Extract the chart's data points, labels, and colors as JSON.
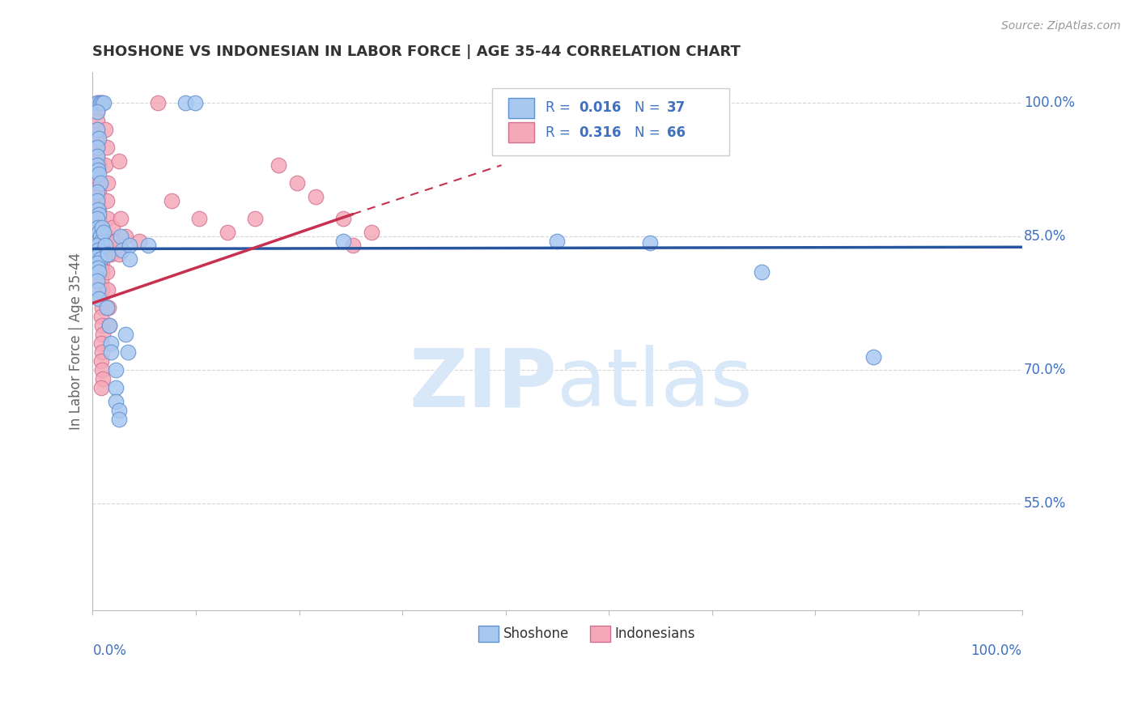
{
  "title": "SHOSHONE VS INDONESIAN IN LABOR FORCE | AGE 35-44 CORRELATION CHART",
  "source": "Source: ZipAtlas.com",
  "ylabel": "In Labor Force | Age 35-44",
  "ytick_labels": [
    "100.0%",
    "85.0%",
    "70.0%",
    "55.0%"
  ],
  "ytick_values": [
    1.0,
    0.85,
    0.7,
    0.55
  ],
  "xmin": 0.0,
  "xmax": 1.0,
  "ymin": 0.43,
  "ymax": 1.035,
  "blue_color": "#A8C8F0",
  "blue_edge": "#6090D0",
  "pink_color": "#F5A8B8",
  "pink_edge": "#D07090",
  "trendline_blue_color": "#2855A0",
  "trendline_pink_color": "#C83050",
  "grid_color": "#CCCCCC",
  "text_color": "#4070C0",
  "title_color": "#333333",
  "watermark_color": "#D8E8F8",
  "shoshone_points": [
    [
      0.005,
      1.0
    ],
    [
      0.008,
      1.0
    ],
    [
      0.01,
      1.0
    ],
    [
      0.012,
      1.0
    ],
    [
      0.005,
      0.99
    ],
    [
      0.005,
      0.97
    ],
    [
      0.007,
      0.96
    ],
    [
      0.005,
      0.95
    ],
    [
      0.005,
      0.94
    ],
    [
      0.005,
      0.93
    ],
    [
      0.006,
      0.925
    ],
    [
      0.007,
      0.92
    ],
    [
      0.008,
      0.91
    ],
    [
      0.005,
      0.9
    ],
    [
      0.005,
      0.89
    ],
    [
      0.006,
      0.88
    ],
    [
      0.007,
      0.875
    ],
    [
      0.005,
      0.87
    ],
    [
      0.006,
      0.86
    ],
    [
      0.007,
      0.855
    ],
    [
      0.008,
      0.85
    ],
    [
      0.009,
      0.845
    ],
    [
      0.005,
      0.84
    ],
    [
      0.006,
      0.835
    ],
    [
      0.007,
      0.83
    ],
    [
      0.008,
      0.825
    ],
    [
      0.005,
      0.82
    ],
    [
      0.006,
      0.815
    ],
    [
      0.007,
      0.81
    ],
    [
      0.005,
      0.8
    ],
    [
      0.006,
      0.79
    ],
    [
      0.007,
      0.78
    ],
    [
      0.01,
      0.86
    ],
    [
      0.012,
      0.855
    ],
    [
      0.014,
      0.84
    ],
    [
      0.016,
      0.83
    ],
    [
      0.015,
      0.77
    ],
    [
      0.018,
      0.75
    ],
    [
      0.02,
      0.73
    ],
    [
      0.02,
      0.72
    ],
    [
      0.025,
      0.7
    ],
    [
      0.025,
      0.68
    ],
    [
      0.025,
      0.665
    ],
    [
      0.028,
      0.655
    ],
    [
      0.028,
      0.645
    ],
    [
      0.03,
      0.85
    ],
    [
      0.032,
      0.835
    ],
    [
      0.035,
      0.74
    ],
    [
      0.038,
      0.72
    ],
    [
      0.04,
      0.84
    ],
    [
      0.04,
      0.825
    ],
    [
      0.06,
      0.84
    ],
    [
      0.1,
      1.0
    ],
    [
      0.11,
      1.0
    ],
    [
      0.27,
      0.845
    ],
    [
      0.5,
      0.845
    ],
    [
      0.6,
      0.843
    ],
    [
      0.72,
      0.81
    ],
    [
      0.84,
      0.715
    ]
  ],
  "indonesian_points": [
    [
      0.005,
      1.0
    ],
    [
      0.007,
      1.0
    ],
    [
      0.009,
      1.0
    ],
    [
      0.005,
      0.99
    ],
    [
      0.005,
      0.98
    ],
    [
      0.005,
      0.97
    ],
    [
      0.006,
      0.965
    ],
    [
      0.005,
      0.96
    ],
    [
      0.006,
      0.955
    ],
    [
      0.005,
      0.95
    ],
    [
      0.005,
      0.94
    ],
    [
      0.006,
      0.935
    ],
    [
      0.007,
      0.93
    ],
    [
      0.006,
      0.925
    ],
    [
      0.005,
      0.92
    ],
    [
      0.005,
      0.91
    ],
    [
      0.006,
      0.905
    ],
    [
      0.007,
      0.9
    ],
    [
      0.006,
      0.895
    ],
    [
      0.005,
      0.89
    ],
    [
      0.006,
      0.885
    ],
    [
      0.007,
      0.88
    ],
    [
      0.006,
      0.875
    ],
    [
      0.007,
      0.87
    ],
    [
      0.008,
      0.865
    ],
    [
      0.009,
      0.86
    ],
    [
      0.01,
      0.86
    ],
    [
      0.009,
      0.855
    ],
    [
      0.01,
      0.85
    ],
    [
      0.009,
      0.845
    ],
    [
      0.01,
      0.84
    ],
    [
      0.009,
      0.835
    ],
    [
      0.01,
      0.83
    ],
    [
      0.009,
      0.825
    ],
    [
      0.01,
      0.82
    ],
    [
      0.009,
      0.815
    ],
    [
      0.01,
      0.81
    ],
    [
      0.009,
      0.8
    ],
    [
      0.01,
      0.79
    ],
    [
      0.009,
      0.78
    ],
    [
      0.01,
      0.77
    ],
    [
      0.009,
      0.76
    ],
    [
      0.01,
      0.75
    ],
    [
      0.011,
      0.74
    ],
    [
      0.009,
      0.73
    ],
    [
      0.01,
      0.72
    ],
    [
      0.009,
      0.71
    ],
    [
      0.01,
      0.7
    ],
    [
      0.011,
      0.69
    ],
    [
      0.009,
      0.68
    ],
    [
      0.014,
      0.97
    ],
    [
      0.015,
      0.95
    ],
    [
      0.014,
      0.93
    ],
    [
      0.016,
      0.91
    ],
    [
      0.015,
      0.89
    ],
    [
      0.016,
      0.87
    ],
    [
      0.015,
      0.85
    ],
    [
      0.016,
      0.83
    ],
    [
      0.015,
      0.81
    ],
    [
      0.016,
      0.79
    ],
    [
      0.017,
      0.77
    ],
    [
      0.018,
      0.75
    ],
    [
      0.021,
      0.86
    ],
    [
      0.022,
      0.845
    ],
    [
      0.02,
      0.83
    ],
    [
      0.025,
      0.845
    ],
    [
      0.028,
      0.935
    ],
    [
      0.03,
      0.87
    ],
    [
      0.028,
      0.83
    ],
    [
      0.035,
      0.85
    ],
    [
      0.05,
      0.845
    ],
    [
      0.07,
      1.0
    ],
    [
      0.085,
      0.89
    ],
    [
      0.115,
      0.87
    ],
    [
      0.145,
      0.855
    ],
    [
      0.175,
      0.87
    ],
    [
      0.2,
      0.93
    ],
    [
      0.22,
      0.91
    ],
    [
      0.24,
      0.895
    ],
    [
      0.27,
      0.87
    ],
    [
      0.3,
      0.855
    ],
    [
      0.28,
      0.84
    ]
  ],
  "shoshone_trendline": [
    [
      0.0,
      0.836
    ],
    [
      1.0,
      0.838
    ]
  ],
  "indonesian_trendline_solid": [
    [
      0.0,
      0.775
    ],
    [
      0.28,
      0.875
    ]
  ],
  "indonesian_trendline_dashed": [
    [
      0.28,
      0.875
    ],
    [
      0.44,
      0.93
    ]
  ]
}
